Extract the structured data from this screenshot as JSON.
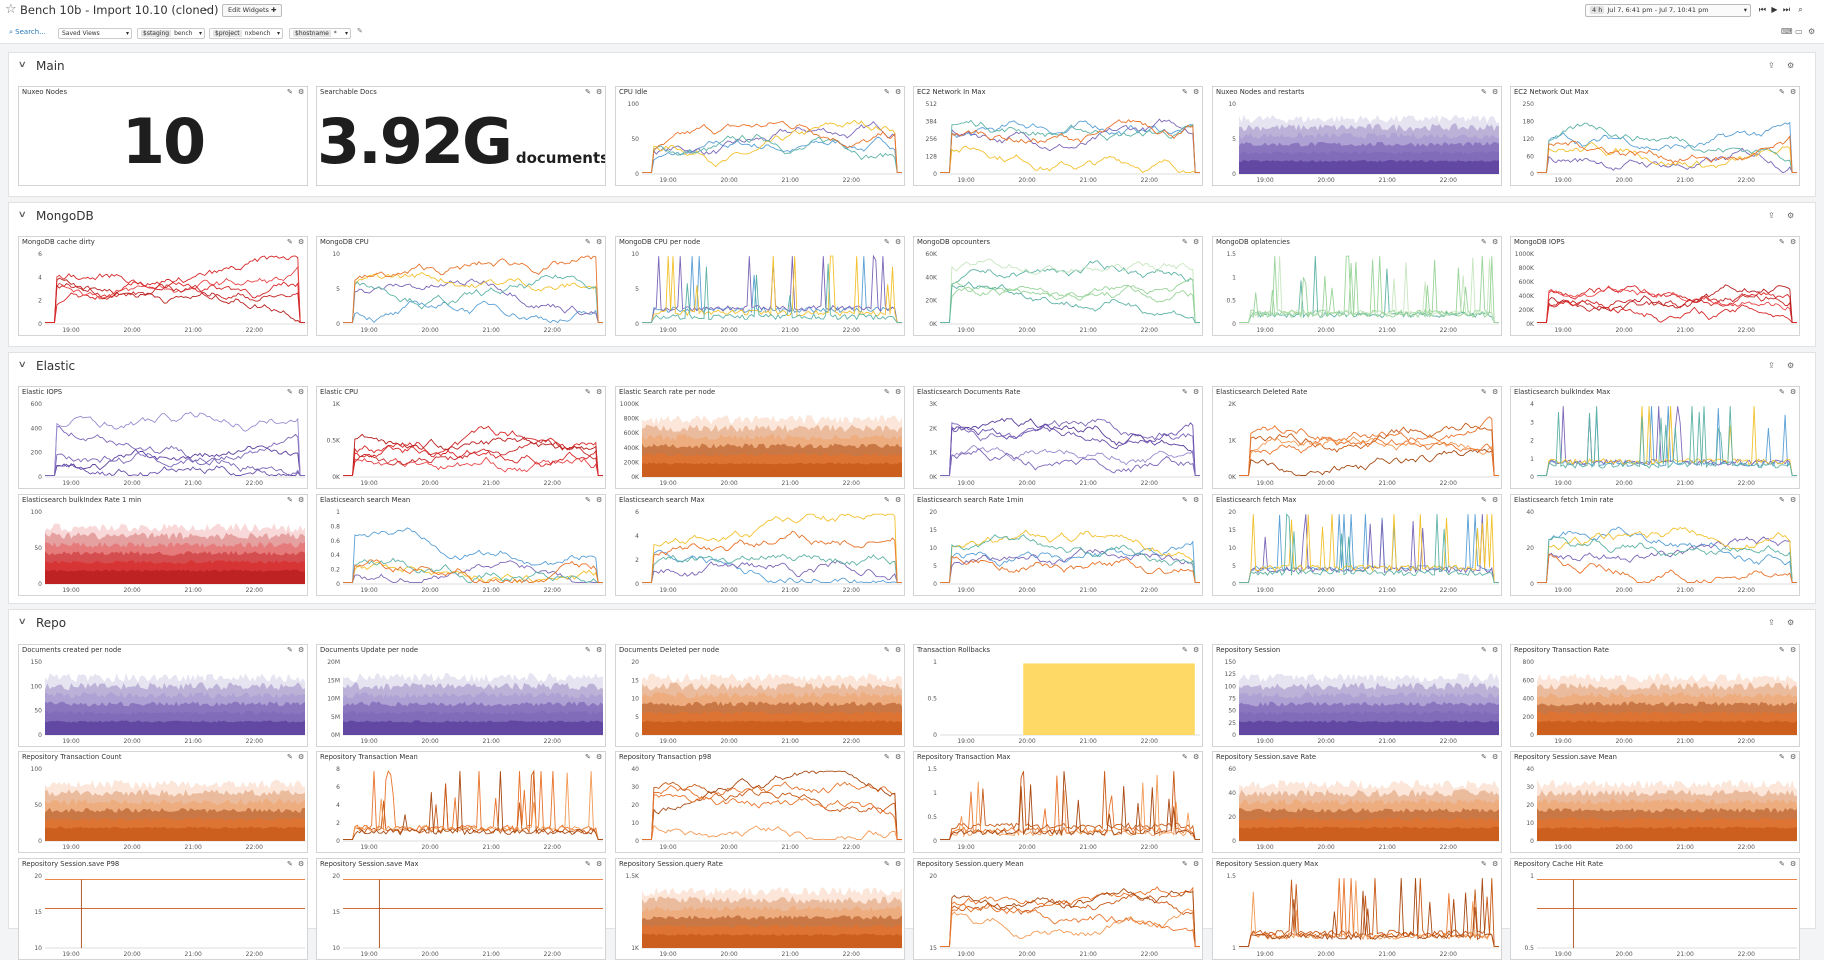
{
  "header": {
    "star_icon": "star-outline-icon",
    "title": "Bench 10b - Import 10.10 (cloned)",
    "edit_widgets": "Edit Widgets",
    "time_badge": "4 h",
    "time_range": "Jul 7, 6:41 pm - Jul 7, 10:41 pm"
  },
  "vars": {
    "search": "Search...",
    "saved_views": "Saved Views",
    "staging_label": "$staging",
    "staging_value": "bench",
    "project_label": "$project",
    "project_value": "nxbench",
    "hostname_label": "$hostname",
    "hostname_value": "*"
  },
  "x_ticks": [
    "19:00",
    "20:00",
    "21:00",
    "22:00"
  ],
  "colors": {
    "orange": "#e8742c",
    "red": "#d62728",
    "purple": "#7c67b8",
    "blue": "#5aa0d6",
    "yellow": "#f2c12e",
    "green": "#9ad49a",
    "teal": "#5fb3a6",
    "bar": "#ffd966"
  },
  "sections": [
    {
      "title": "Main",
      "panels": [
        {
          "title": "Nuxeo Nodes",
          "kind": "stat",
          "value": "10"
        },
        {
          "title": "Searchable Docs",
          "kind": "stat",
          "value": "3.92G",
          "unit": "documents"
        },
        {
          "title": "CPU Idle",
          "kind": "chart",
          "style": "lines",
          "palette": "mix",
          "y": [
            "0",
            "50",
            "100"
          ]
        },
        {
          "title": "EC2 Network In Max",
          "kind": "chart",
          "style": "lines",
          "palette": "mix",
          "y": [
            "0",
            "128",
            "256",
            "384",
            "512"
          ]
        },
        {
          "title": "Nuxeo Nodes and restarts",
          "kind": "chart",
          "style": "stack",
          "palette": "purple",
          "y": [
            "0",
            "5",
            "10"
          ]
        },
        {
          "title": "EC2 Network Out Max",
          "kind": "chart",
          "style": "lines",
          "palette": "mix",
          "y": [
            "0",
            "60",
            "120",
            "180",
            "250"
          ]
        }
      ]
    },
    {
      "title": "MongoDB",
      "panels": [
        {
          "title": "MongoDB cache dirty",
          "kind": "chart",
          "style": "lines",
          "palette": "red",
          "y": [
            "0",
            "2",
            "4",
            "6"
          ]
        },
        {
          "title": "MongoDB CPU",
          "kind": "chart",
          "style": "lines",
          "palette": "mix",
          "y": [
            "0",
            "5",
            "10"
          ]
        },
        {
          "title": "MongoDB CPU per node",
          "kind": "chart",
          "style": "spikes",
          "palette": "mix",
          "y": [
            "0",
            "5",
            "10"
          ]
        },
        {
          "title": "MongoDB opcounters",
          "kind": "chart",
          "style": "lines",
          "palette": "green",
          "y": [
            "0K",
            "20K",
            "40K",
            "60K"
          ]
        },
        {
          "title": "MongoDB oplatencies",
          "kind": "chart",
          "style": "spikes",
          "palette": "green",
          "y": [
            "0",
            "0.5",
            "1",
            "1.5"
          ]
        },
        {
          "title": "MongoDB IOPS",
          "kind": "chart",
          "style": "lines",
          "palette": "red",
          "y": [
            "0K",
            "200K",
            "400K",
            "600K",
            "800K",
            "1000K"
          ]
        }
      ]
    },
    {
      "title": "Elastic",
      "panels": [
        {
          "title": "Elastic IOPS",
          "kind": "chart",
          "style": "lines",
          "palette": "purple",
          "y": [
            "0",
            "200",
            "400",
            "600"
          ]
        },
        {
          "title": "Elastic CPU",
          "kind": "chart",
          "style": "lines",
          "palette": "red",
          "y": [
            "0K",
            "0.5K",
            "1K"
          ]
        },
        {
          "title": "Elastic Search rate per node",
          "kind": "chart",
          "style": "stack",
          "palette": "orange",
          "y": [
            "0K",
            "200K",
            "400K",
            "600K",
            "800K",
            "1000K"
          ]
        },
        {
          "title": "Elasticsearch Documents Rate",
          "kind": "chart",
          "style": "lines",
          "palette": "purple",
          "y": [
            "0K",
            "1K",
            "2K",
            "3K"
          ]
        },
        {
          "title": "Elasticsearch Deleted Rate",
          "kind": "chart",
          "style": "lines",
          "palette": "orange",
          "y": [
            "0K",
            "1K",
            "2K"
          ]
        },
        {
          "title": "Elasticsearch bulkIndex Max",
          "kind": "chart",
          "style": "spikes",
          "palette": "mix",
          "y": [
            "0",
            "1",
            "2",
            "3",
            "4"
          ]
        },
        {
          "title": "Elasticsearch bulkIndex Rate 1 min",
          "kind": "chart",
          "style": "stack",
          "palette": "red",
          "y": [
            "0",
            "50",
            "100"
          ]
        },
        {
          "title": "Elasticsearch search Mean",
          "kind": "chart",
          "style": "lines",
          "palette": "mix",
          "y": [
            "0",
            "0.2",
            "0.4",
            "0.6",
            "0.8",
            "1"
          ]
        },
        {
          "title": "Elasticsearch search Max",
          "kind": "chart",
          "style": "lines",
          "palette": "mix",
          "y": [
            "0",
            "2",
            "4",
            "6"
          ]
        },
        {
          "title": "Elasticsearch search Rate 1min",
          "kind": "chart",
          "style": "lines",
          "palette": "mix",
          "y": [
            "0",
            "5",
            "10",
            "15",
            "20"
          ]
        },
        {
          "title": "Elasticsearch fetch Max",
          "kind": "chart",
          "style": "spikes",
          "palette": "mix",
          "y": [
            "0",
            "5",
            "10",
            "15",
            "20"
          ]
        },
        {
          "title": "Elasticsearch fetch 1min rate",
          "kind": "chart",
          "style": "lines",
          "palette": "mix",
          "y": [
            "0",
            "20",
            "40"
          ]
        }
      ]
    },
    {
      "title": "Repo",
      "panels": [
        {
          "title": "Documents created per node",
          "kind": "chart",
          "style": "stack",
          "palette": "purple",
          "y": [
            "0",
            "50",
            "100",
            "150"
          ]
        },
        {
          "title": "Documents Update per node",
          "kind": "chart",
          "style": "stack",
          "palette": "purple",
          "y": [
            "0M",
            "5M",
            "10M",
            "15M",
            "20M"
          ]
        },
        {
          "title": "Documents Deleted per node",
          "kind": "chart",
          "style": "stack",
          "palette": "orange",
          "y": [
            "0",
            "5",
            "10",
            "15",
            "20"
          ]
        },
        {
          "title": "Transaction Rollbacks",
          "kind": "chart",
          "style": "bars",
          "palette": "yellow",
          "y": [
            "0",
            "0.5",
            "1"
          ]
        },
        {
          "title": "Repository Session",
          "kind": "chart",
          "style": "stack",
          "palette": "purple",
          "y": [
            "0",
            "25",
            "50",
            "75",
            "100",
            "125",
            "150"
          ]
        },
        {
          "title": "Repository Transaction Rate",
          "kind": "chart",
          "style": "stack",
          "palette": "orange",
          "y": [
            "0",
            "200",
            "400",
            "600",
            "800"
          ]
        },
        {
          "title": "Repository Transaction Count",
          "kind": "chart",
          "style": "stack",
          "palette": "orange",
          "y": [
            "0",
            "50",
            "100"
          ]
        },
        {
          "title": "Repository Transaction Mean",
          "kind": "chart",
          "style": "spikes",
          "palette": "orange",
          "y": [
            "0",
            "2",
            "4",
            "6",
            "8"
          ]
        },
        {
          "title": "Repository Transaction p98",
          "kind": "chart",
          "style": "lines",
          "palette": "orange",
          "y": [
            "0",
            "10",
            "20",
            "30",
            "40"
          ]
        },
        {
          "title": "Repository Transaction Max",
          "kind": "chart",
          "style": "spikes",
          "palette": "orange",
          "y": [
            "0",
            "0.5",
            "1",
            "1.5"
          ]
        },
        {
          "title": "Repository Session.save Rate",
          "kind": "chart",
          "style": "stack",
          "palette": "orange",
          "y": [
            "0",
            "20",
            "40",
            "60"
          ]
        },
        {
          "title": "Repository Session.save Mean",
          "kind": "chart",
          "style": "stack",
          "palette": "orange",
          "y": [
            "0",
            "10",
            "20",
            "30",
            "40"
          ]
        },
        {
          "title": "Repository Session.save P98",
          "kind": "chart",
          "style": "flat",
          "palette": "orange",
          "y": [
            "10",
            "15",
            "20"
          ]
        },
        {
          "title": "Repository Session.save Max",
          "kind": "chart",
          "style": "flat",
          "palette": "orange",
          "y": [
            "10",
            "15",
            "20"
          ]
        },
        {
          "title": "Repository Session.query Rate",
          "kind": "chart",
          "style": "stack",
          "palette": "orange",
          "y": [
            "1K",
            "1.5K"
          ]
        },
        {
          "title": "Repository Session.query Mean",
          "kind": "chart",
          "style": "lines",
          "palette": "orange",
          "y": [
            "15",
            "20"
          ]
        },
        {
          "title": "Repository Session.query Max",
          "kind": "chart",
          "style": "spikes",
          "palette": "orange",
          "y": [
            "1",
            "1.5"
          ]
        },
        {
          "title": "Repository Cache Hit Rate",
          "kind": "chart",
          "style": "flat",
          "palette": "orange",
          "y": [
            "0.5",
            "1"
          ]
        }
      ]
    }
  ]
}
